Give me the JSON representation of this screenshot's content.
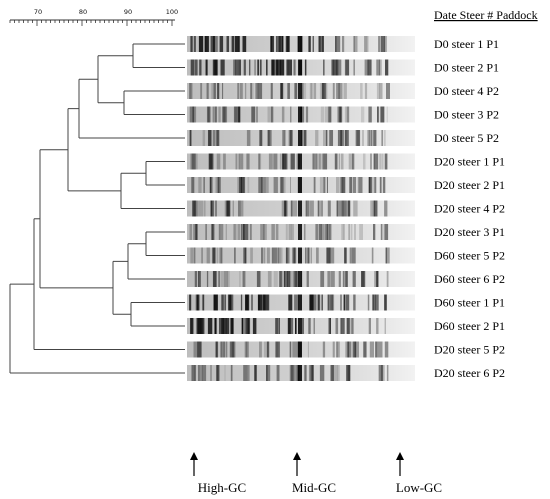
{
  "similarity_scale": {
    "tick_labels": [
      "70",
      "80",
      "90",
      "100"
    ]
  },
  "legend_header": "Date Steer # Paddock",
  "lanes": [
    "D0 steer 1  P1",
    "D0 steer 2  P1",
    "D0 steer 4  P2",
    "D0 steer 3  P2",
    "D0 steer 5  P2",
    "D20 steer 1 P1",
    "D20 steer 2 P1",
    "D20 steer 4 P2",
    "D20 steer 3 P1",
    "D60 steer 5 P2",
    "D60 steer 6 P2",
    "D60 steer 1 P1",
    "D60 steer 2 P1",
    "D20 steer 5 P2",
    "D20 steer 6 P2"
  ],
  "markers": [
    {
      "label": "High-GC"
    },
    {
      "label": "Mid-GC"
    },
    {
      "label": "Low-GC"
    }
  ],
  "colors": {
    "tree_line": "#444444",
    "band_dark": "#111111",
    "lane_background": "#d9d9d9"
  }
}
